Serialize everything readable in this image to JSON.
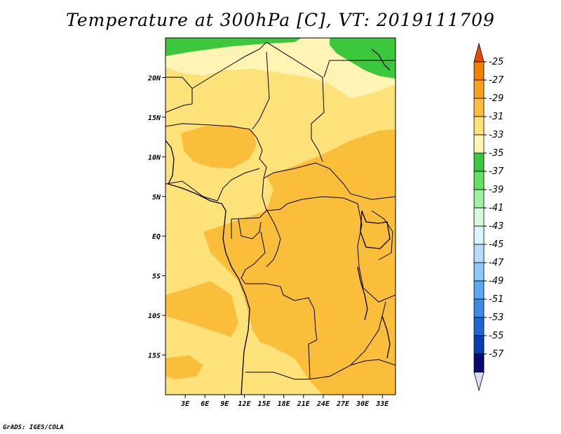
{
  "title": "Temperature at 300hPa [C], VT: 2019111709",
  "credit": "GrADS: IGES/COLA",
  "map": {
    "lat_labels": [
      "20N",
      "15N",
      "10N",
      "5N",
      "EQ",
      "5S",
      "10S",
      "15S"
    ],
    "lat_values": [
      20,
      15,
      10,
      5,
      0,
      -5,
      -10,
      -15
    ],
    "lon_labels": [
      "3E",
      "6E",
      "9E",
      "12E",
      "15E",
      "18E",
      "21E",
      "24E",
      "27E",
      "30E",
      "33E"
    ],
    "lon_values": [
      3,
      6,
      9,
      12,
      15,
      18,
      21,
      24,
      27,
      30,
      33
    ],
    "lon_range": [
      0,
      35
    ],
    "lat_range": [
      -20,
      25
    ]
  },
  "colorbar": {
    "labels": [
      "-25",
      "-27",
      "-29",
      "-31",
      "-33",
      "-35",
      "-37",
      "-39",
      "-41",
      "-43",
      "-45",
      "-47",
      "-49",
      "-51",
      "-53",
      "-55",
      "-57"
    ],
    "colors": [
      "#e84800",
      "#f08000",
      "#f8a020",
      "#fbbe3a",
      "#fde27a",
      "#fff4b4",
      "#3cc83c",
      "#64e064",
      "#9ef09e",
      "#dcf8dc",
      "#dcf4fc",
      "#b4dcfc",
      "#8cc8f8",
      "#5aa8f0",
      "#3c8ce6",
      "#1e64d2",
      "#0a3cb4",
      "#0a0a6e",
      "#dcdcfc"
    ]
  }
}
